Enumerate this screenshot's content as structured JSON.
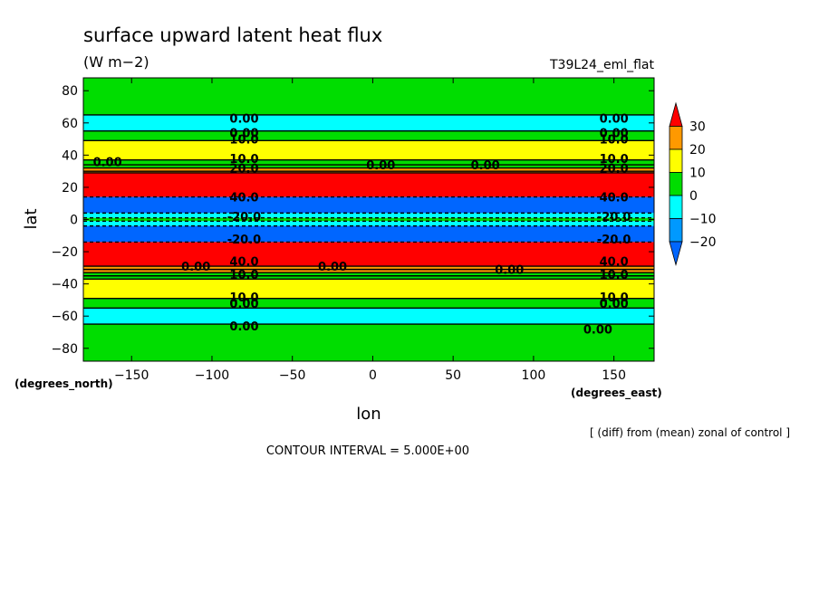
{
  "chart_data": {
    "type": "heatmap",
    "title": "surface upward latent heat flux",
    "units": "(W m−2)",
    "run_label": "T39L24_eml_flat",
    "xlabel": "lon",
    "ylabel": "lat",
    "x_unit_label": "(degrees_east)",
    "y_unit_label": "(degrees_north)",
    "xlim": [
      -180,
      175
    ],
    "ylim": [
      -88,
      88
    ],
    "xticks": [
      -150,
      -100,
      -50,
      0,
      50,
      100,
      150
    ],
    "xtick_labels": [
      "−150",
      "−100",
      "−50",
      "0",
      "50",
      "100",
      "150"
    ],
    "yticks": [
      -80,
      -60,
      -40,
      -20,
      0,
      20,
      40,
      60,
      80
    ],
    "ytick_labels": [
      "−80",
      "−60",
      "−40",
      "−20",
      "0",
      "20",
      "40",
      "60",
      "80"
    ],
    "note": "[ (diff) from (mean) zonal of control ]",
    "contour_interval_text": "CONTOUR INTERVAL = 5.000E+00",
    "legend": {
      "levels": [
        "30",
        "20",
        "10",
        "0",
        "−10",
        "−20"
      ],
      "bins": [
        {
          "range": ">30",
          "color": "#ff0000"
        },
        {
          "range": "20..30",
          "color": "#ff9900"
        },
        {
          "range": "10..20",
          "color": "#ffff00"
        },
        {
          "range": "0..10",
          "color": "#00dd00"
        },
        {
          "range": "-10..0",
          "color": "#00ffff"
        },
        {
          "range": "-20..-10",
          "color": "#0099ff"
        },
        {
          "range": "<-20",
          "color": "#0066ff"
        }
      ]
    },
    "bands": [
      {
        "lat_from": 88,
        "lat_to": 65,
        "color": "#00dd00"
      },
      {
        "lat_from": 65,
        "lat_to": 55,
        "color": "#00ffff"
      },
      {
        "lat_from": 55,
        "lat_to": 49,
        "color": "#00dd00"
      },
      {
        "lat_from": 49,
        "lat_to": 37,
        "color": "#ffff00"
      },
      {
        "lat_from": 37,
        "lat_to": 32,
        "color": "#00dd00"
      },
      {
        "lat_from": 32,
        "lat_to": 29,
        "color": "#ff9900"
      },
      {
        "lat_from": 29,
        "lat_to": 14,
        "color": "#ff0000"
      },
      {
        "lat_from": 14,
        "lat_to": 4,
        "color": "#0066ff"
      },
      {
        "lat_from": 4,
        "lat_to": 1,
        "color": "#00ffff"
      },
      {
        "lat_from": 1,
        "lat_to": -1,
        "color": "#00dd00"
      },
      {
        "lat_from": -1,
        "lat_to": -4,
        "color": "#00ffff"
      },
      {
        "lat_from": -4,
        "lat_to": -14,
        "color": "#0066ff"
      },
      {
        "lat_from": -14,
        "lat_to": -29,
        "color": "#ff0000"
      },
      {
        "lat_from": -29,
        "lat_to": -33,
        "color": "#ff9900"
      },
      {
        "lat_from": -33,
        "lat_to": -37,
        "color": "#00dd00"
      },
      {
        "lat_from": -37,
        "lat_to": -49,
        "color": "#ffff00"
      },
      {
        "lat_from": -49,
        "lat_to": -55,
        "color": "#00dd00"
      },
      {
        "lat_from": -55,
        "lat_to": -65,
        "color": "#00ffff"
      },
      {
        "lat_from": -65,
        "lat_to": -88,
        "color": "#00dd00"
      }
    ],
    "contour_lines": [
      {
        "lat": 65,
        "dashed": false
      },
      {
        "lat": 55,
        "dashed": false
      },
      {
        "lat": 49,
        "dashed": false
      },
      {
        "lat": 37,
        "dashed": false
      },
      {
        "lat": 34,
        "dashed": false
      },
      {
        "lat": 32,
        "dashed": false
      },
      {
        "lat": 30,
        "dashed": false
      },
      {
        "lat": 29,
        "dashed": false
      },
      {
        "lat": 14,
        "dashed": true
      },
      {
        "lat": 4,
        "dashed": true
      },
      {
        "lat": 1,
        "dashed": true
      },
      {
        "lat": -1,
        "dashed": true
      },
      {
        "lat": -4,
        "dashed": true
      },
      {
        "lat": -14,
        "dashed": true
      },
      {
        "lat": -29,
        "dashed": false
      },
      {
        "lat": -31,
        "dashed": false
      },
      {
        "lat": -33,
        "dashed": false
      },
      {
        "lat": -35,
        "dashed": false
      },
      {
        "lat": -37,
        "dashed": false
      },
      {
        "lat": -49,
        "dashed": false
      },
      {
        "lat": -55,
        "dashed": false
      },
      {
        "lat": -65,
        "dashed": false
      }
    ],
    "contour_labels": [
      {
        "text": "0.00",
        "lon": -80,
        "lat": 63
      },
      {
        "text": "0.00",
        "lon": 150,
        "lat": 63
      },
      {
        "text": "0.00",
        "lon": -80,
        "lat": 54
      },
      {
        "text": "0.00",
        "lon": 150,
        "lat": 54
      },
      {
        "text": "10.0",
        "lon": -80,
        "lat": 50
      },
      {
        "text": "10.0",
        "lon": 150,
        "lat": 50
      },
      {
        "text": "10.0",
        "lon": -80,
        "lat": 38
      },
      {
        "text": "10.0",
        "lon": 150,
        "lat": 38
      },
      {
        "text": "0.00",
        "lon": -165,
        "lat": 36
      },
      {
        "text": "0.00",
        "lon": 5,
        "lat": 34
      },
      {
        "text": "0.00",
        "lon": 70,
        "lat": 34
      },
      {
        "text": "20.0",
        "lon": -80,
        "lat": 32
      },
      {
        "text": "20.0",
        "lon": 150,
        "lat": 32
      },
      {
        "text": "40.0",
        "lon": -80,
        "lat": 14
      },
      {
        "text": "40.0",
        "lon": 150,
        "lat": 14
      },
      {
        "text": "-20.0",
        "lon": -80,
        "lat": 2
      },
      {
        "text": "-20.0",
        "lon": 150,
        "lat": 2
      },
      {
        "text": "-20.0",
        "lon": -80,
        "lat": -12
      },
      {
        "text": "-20.0",
        "lon": 150,
        "lat": -12
      },
      {
        "text": "40.0",
        "lon": -80,
        "lat": -26
      },
      {
        "text": "40.0",
        "lon": 150,
        "lat": -26
      },
      {
        "text": "0.00",
        "lon": -110,
        "lat": -29
      },
      {
        "text": "0.00",
        "lon": -25,
        "lat": -29
      },
      {
        "text": "0.00",
        "lon": 85,
        "lat": -31
      },
      {
        "text": "10.0",
        "lon": -80,
        "lat": -34
      },
      {
        "text": "10.0",
        "lon": 150,
        "lat": -34
      },
      {
        "text": "10.0",
        "lon": -80,
        "lat": -48
      },
      {
        "text": "10.0",
        "lon": 150,
        "lat": -48
      },
      {
        "text": "0.00",
        "lon": -80,
        "lat": -52
      },
      {
        "text": "0.00",
        "lon": 150,
        "lat": -52
      },
      {
        "text": "0.00",
        "lon": -80,
        "lat": -66
      },
      {
        "text": "0.00",
        "lon": 140,
        "lat": -68
      }
    ]
  }
}
